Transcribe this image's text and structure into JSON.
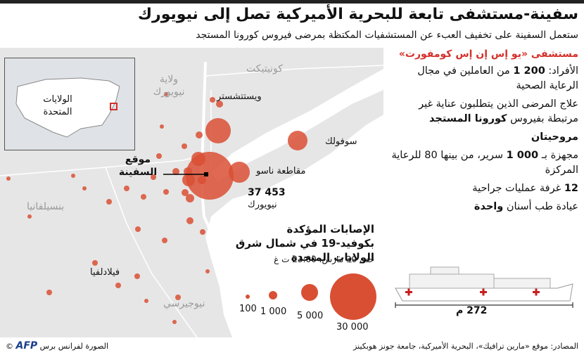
{
  "header": {
    "title": "سفينة-مستشفى تابعة للبحرية الأميركية تصل إلى نيويورك",
    "subtitle": "ستعمل السفينة على تخفيف العبء عن المستشفيات المكتظة بمرضى فيروس كورونا المستجد"
  },
  "map": {
    "inset_label": "الولايات المتحدة",
    "states": {
      "new_york": "ولاية نيويورك",
      "connecticut": "كونيتيكت",
      "pennsylvania": "بنسيلفانيا",
      "new_jersey": "نيوجيرسي"
    },
    "places": {
      "westchester": "ويستتشستر",
      "suffolk": "سوفولك",
      "nassau": "مقاطعة ناسو",
      "nyc_value": "37 453",
      "nyc_name": "نيويورك",
      "philadelphia": "فيلادلفيا"
    },
    "ship_location": "موقع السفينة",
    "colors": {
      "bubble": "#d94f34",
      "land": "#e6e6e6",
      "water": "#ffffff"
    }
  },
  "legend": {
    "title": "الإصابات المؤكدة بكوفيد-19 في شمال شرق الولايات المتحدة",
    "date": "حتى 30 مارس، 23:00 ت غ",
    "sizes": [
      "100",
      "1 000",
      "5 000",
      "30 000"
    ]
  },
  "ship_panel": {
    "head": "مستشفى «يو إس إن إس كومفورت»",
    "staff_label": "الأفراد:",
    "staff_value": "1 200",
    "staff_rest": "من العاملين في مجال الرعاية الصحية",
    "treat_text": "علاج المرضى الذين يتطلبون عناية غير مرتبطة بفيروس",
    "treat_bold": "كورونا المستجد",
    "helipad": "مروحيتان",
    "beds_text": "مجهزة بـ",
    "beds_value": "1 000",
    "beds_rest": "سرير، من بينها 80 للرعاية المركزة",
    "or_value": "12",
    "or_text": "غرفة عمليات جراحية",
    "dental_text": "عيادة طب أسنان",
    "dental_bold": "واحدة",
    "length": "272 م"
  },
  "footer": {
    "sources": "المصادر: موقع «مارين ترافيك»، البحرية الأميركية، جامعة جونز هوبكينز",
    "credit": "الصورة لفرانس برس",
    "agency": "AFP"
  }
}
